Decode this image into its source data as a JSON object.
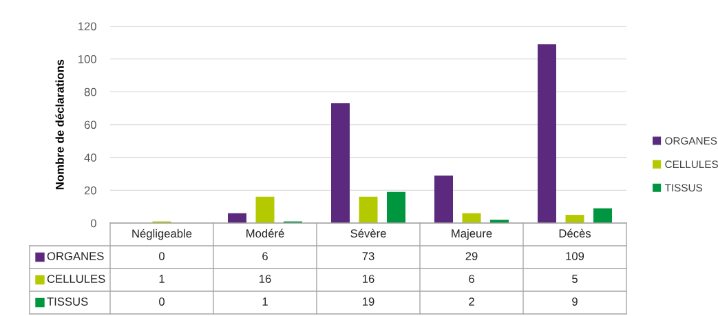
{
  "chart_data": {
    "type": "bar",
    "ylabel": "Nombre de déclarations",
    "categories": [
      "Négligeable",
      "Modéré",
      "Sévère",
      "Majeure",
      "Décès"
    ],
    "series": [
      {
        "name": "ORGANES",
        "color": "#5b2a7e",
        "values": [
          0,
          6,
          73,
          29,
          109
        ]
      },
      {
        "name": "CELLULES",
        "color": "#b5c900",
        "values": [
          1,
          16,
          16,
          6,
          5
        ]
      },
      {
        "name": "TISSUS",
        "color": "#00963f",
        "values": [
          0,
          1,
          19,
          2,
          9
        ]
      }
    ],
    "ylim": [
      0,
      120
    ],
    "yticks": [
      0,
      20,
      40,
      60,
      80,
      100,
      120
    ],
    "grid": "y",
    "legend": "right",
    "data_labels": true
  }
}
